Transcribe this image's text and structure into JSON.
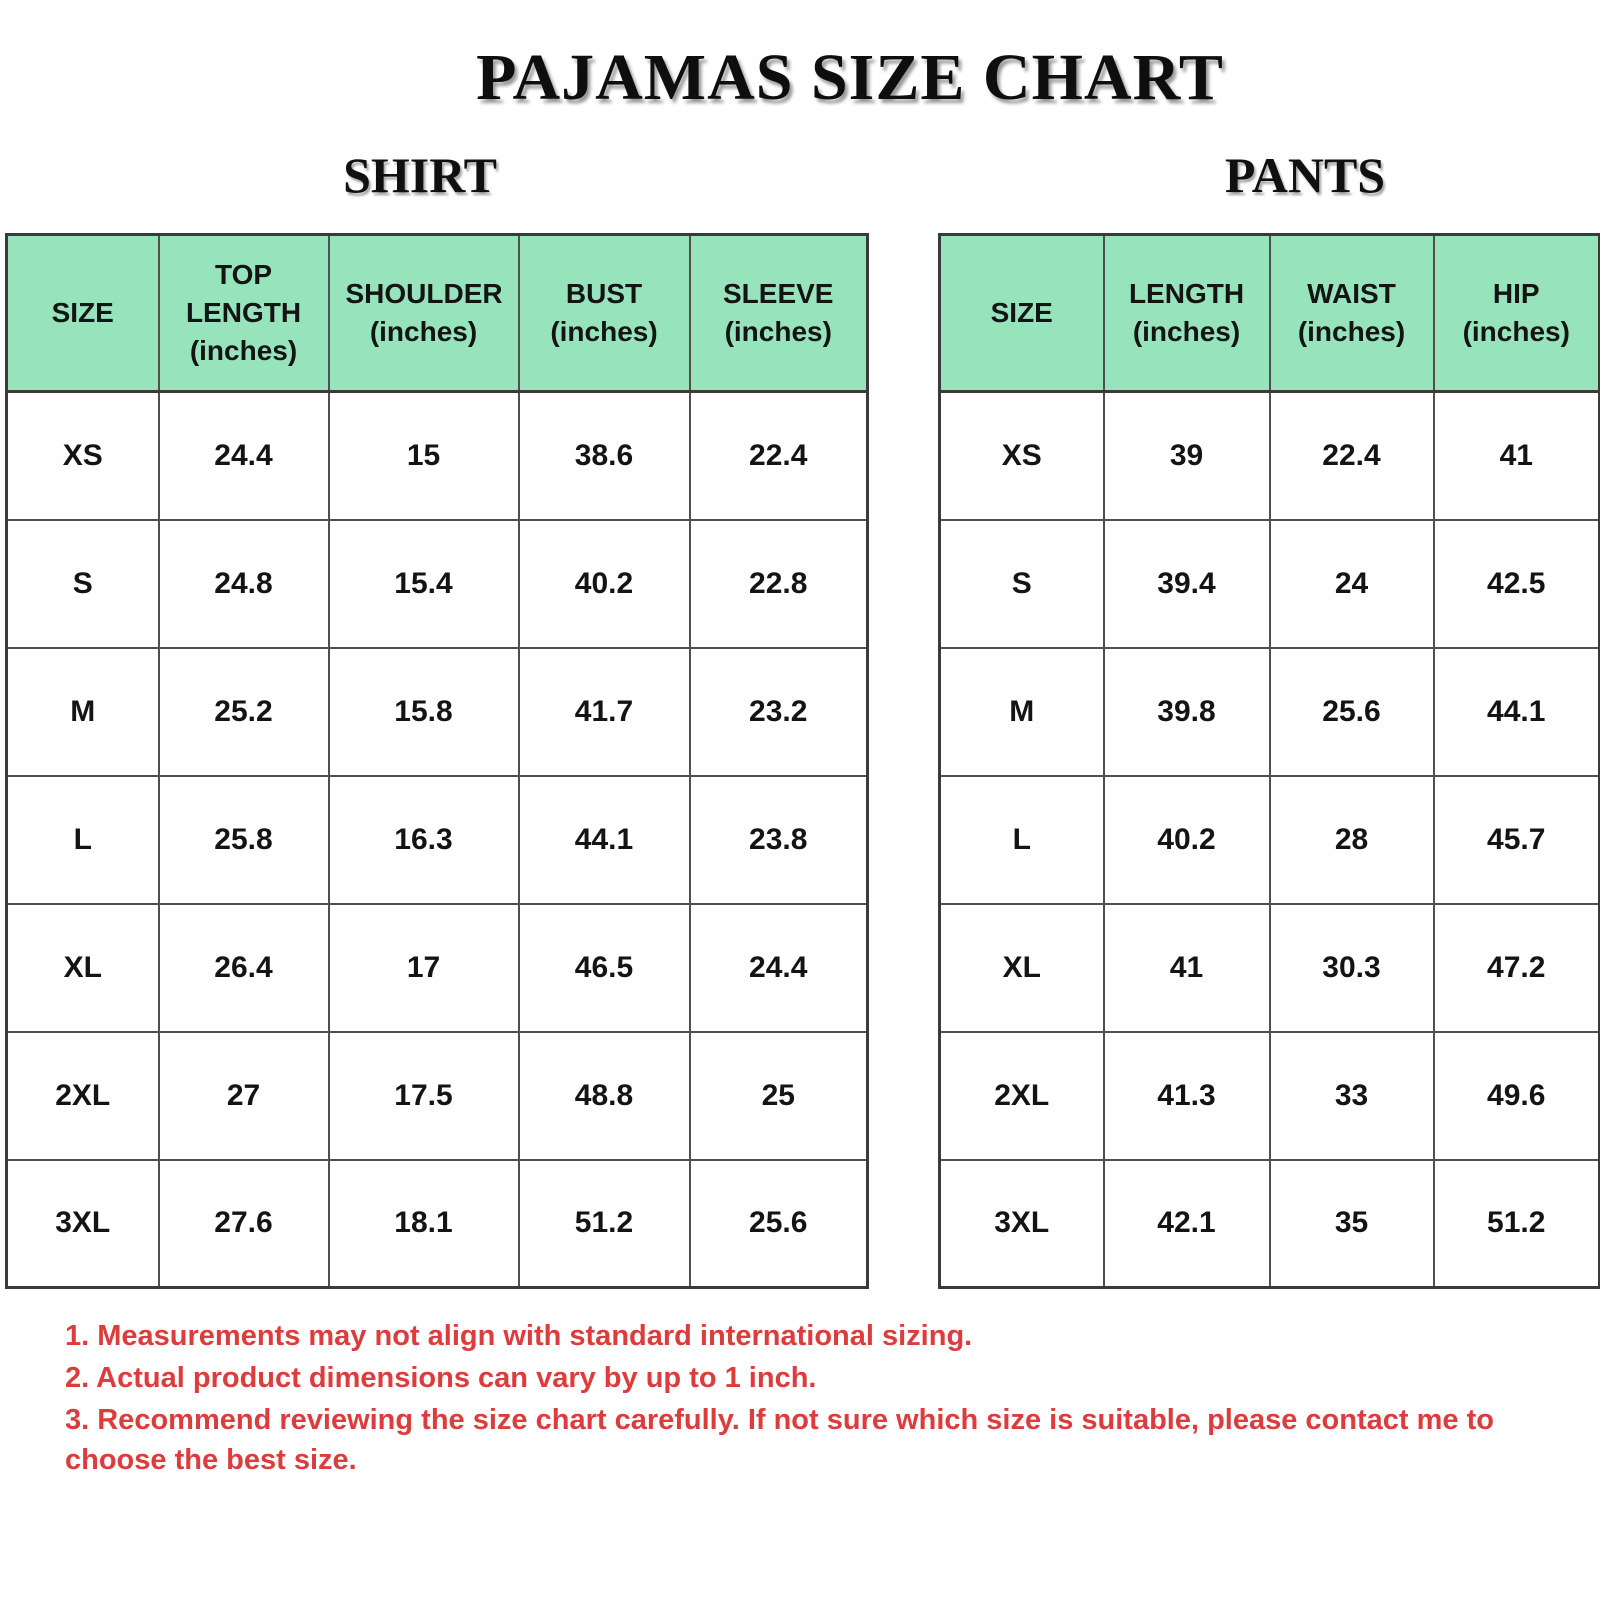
{
  "page": {
    "title": "PAJAMAS SIZE CHART"
  },
  "colors": {
    "header_green": "#97E3BC",
    "note_red": "#DC3C3C",
    "border_gray": "#4F4F4F"
  },
  "chart_data": [
    {
      "type": "table",
      "title": "SHIRT",
      "columns": [
        "SIZE",
        "TOP LENGTH (inches)",
        "SHOULDER (inches)",
        "BUST (inches)",
        "SLEEVE (inches)"
      ],
      "rows": [
        [
          "XS",
          "24.4",
          "15",
          "38.6",
          "22.4"
        ],
        [
          "S",
          "24.8",
          "15.4",
          "40.2",
          "22.8"
        ],
        [
          "M",
          "25.2",
          "15.8",
          "41.7",
          "23.2"
        ],
        [
          "L",
          "25.8",
          "16.3",
          "44.1",
          "23.8"
        ],
        [
          "XL",
          "26.4",
          "17",
          "46.5",
          "24.4"
        ],
        [
          "2XL",
          "27",
          "17.5",
          "48.8",
          "25"
        ],
        [
          "3XL",
          "27.6",
          "18.1",
          "51.2",
          "25.6"
        ]
      ]
    },
    {
      "type": "table",
      "title": "PANTS",
      "columns": [
        "SIZE",
        "LENGTH (inches)",
        "WAIST (inches)",
        "HIP (inches)"
      ],
      "rows": [
        [
          "XS",
          "39",
          "22.4",
          "41"
        ],
        [
          "S",
          "39.4",
          "24",
          "42.5"
        ],
        [
          "M",
          "39.8",
          "25.6",
          "44.1"
        ],
        [
          "L",
          "40.2",
          "28",
          "45.7"
        ],
        [
          "XL",
          "41",
          "30.3",
          "47.2"
        ],
        [
          "2XL",
          "41.3",
          "33",
          "49.6"
        ],
        [
          "3XL",
          "42.1",
          "35",
          "51.2"
        ]
      ]
    }
  ],
  "notes": [
    "1. Measurements may not align with standard international sizing.",
    "2. Actual product dimensions can vary by up to 1 inch.",
    "3. Recommend reviewing the size chart carefully. If not sure which size is suitable, please contact me to choose the best size."
  ]
}
